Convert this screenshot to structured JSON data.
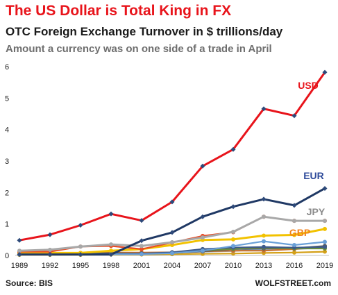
{
  "header": {
    "title": "The US Dollar is Total King in FX",
    "subtitle": "OTC Foreign Exchange Turnover  in $ trillions/day",
    "subtitle2": "Amount a currency was on one side of a trade in April"
  },
  "footer": {
    "source": "Source: BIS",
    "credit": "WOLFSTREET.com"
  },
  "chart_data": {
    "type": "line",
    "title": "OTC Foreign Exchange Turnover  in $ trillions/day",
    "subtitle": "Amount a currency was on one side of a trade in April",
    "xlabel": "",
    "ylabel": "",
    "ylim": [
      0,
      6
    ],
    "yticks": [
      0,
      1,
      2,
      3,
      4,
      5,
      6
    ],
    "grid": false,
    "legend": "none",
    "x": [
      "1989",
      "1992",
      "1995",
      "1998",
      "2001",
      "2004",
      "2007",
      "2010",
      "2013",
      "2016",
      "2019"
    ],
    "series": [
      {
        "name": "",
        "color": "#d4a017",
        "values": [
          0.02,
          0.02,
          0.02,
          0.03,
          0.03,
          0.04,
          0.05,
          0.06,
          0.08,
          0.09,
          0.12
        ]
      },
      {
        "name": "",
        "color": "#8fa8c8",
        "values": [
          0.05,
          0.05,
          0.06,
          0.07,
          0.07,
          0.09,
          0.12,
          0.14,
          0.2,
          0.2,
          0.25
        ]
      },
      {
        "name": "",
        "color": "#c8722e",
        "values": [
          0.08,
          0.08,
          0.08,
          0.09,
          0.09,
          0.1,
          0.13,
          0.15,
          0.15,
          0.2,
          0.28
        ]
      },
      {
        "name": "",
        "color": "#5a5a5a",
        "values": [
          0.06,
          0.06,
          0.07,
          0.07,
          0.06,
          0.08,
          0.13,
          0.2,
          0.22,
          0.23,
          0.3
        ]
      },
      {
        "name": "",
        "color": "#6b8f3a",
        "values": [
          0.04,
          0.04,
          0.04,
          0.05,
          0.05,
          0.07,
          0.16,
          0.21,
          0.25,
          0.22,
          0.22
        ]
      },
      {
        "name": "",
        "color": "#3d5a8a",
        "values": [
          0.04,
          0.04,
          0.05,
          0.05,
          0.06,
          0.1,
          0.2,
          0.25,
          0.27,
          0.25,
          0.27
        ]
      },
      {
        "name": "",
        "color": "#6aa0d8",
        "values": [
          0.03,
          0.03,
          0.03,
          0.04,
          0.04,
          0.07,
          0.15,
          0.3,
          0.45,
          0.33,
          0.43
        ]
      },
      {
        "name": "GBP",
        "color": "#f2c200",
        "values": [
          0.08,
          0.08,
          0.08,
          0.15,
          0.2,
          0.33,
          0.49,
          0.51,
          0.63,
          0.65,
          0.84
        ]
      },
      {
        "name": "",
        "color": "#e84c25",
        "values": [
          0.12,
          0.12,
          0.28,
          0.3,
          0.2,
          0.41,
          0.62,
          0.74,
          1.23,
          1.1,
          1.1
        ]
      },
      {
        "name": "JPY",
        "color": "#a8a8a8",
        "values": [
          0.15,
          0.18,
          0.28,
          0.35,
          0.3,
          0.42,
          0.57,
          0.75,
          1.23,
          1.1,
          1.1
        ]
      },
      {
        "name": "EUR",
        "color": "#1f3864",
        "values": [
          0.03,
          0.03,
          0.03,
          0.03,
          0.47,
          0.73,
          1.23,
          1.55,
          1.79,
          1.59,
          2.13
        ]
      },
      {
        "name": "USD",
        "color": "#e8141b",
        "values": [
          0.48,
          0.66,
          0.96,
          1.32,
          1.11,
          1.7,
          2.84,
          3.37,
          4.66,
          4.44,
          5.82
        ]
      }
    ]
  }
}
